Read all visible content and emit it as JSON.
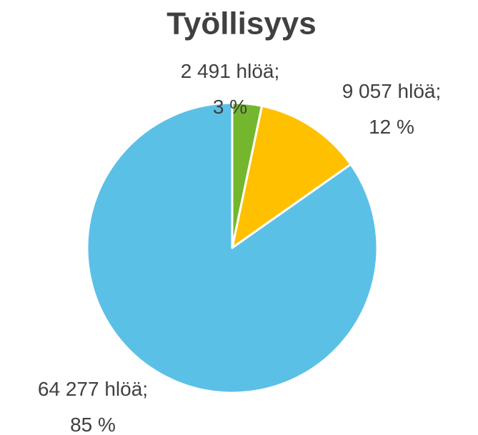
{
  "chart_data": {
    "type": "pie",
    "title": "Työllisyys",
    "values": [
      2491,
      9057,
      64277
    ],
    "value_labels": [
      "2 491 hlöä; 3 %",
      "9 057 hlöä; 12 %",
      "64 277 hlöä; 85 %"
    ],
    "colors": [
      "#74b72e",
      "#ffc000",
      "#5bc0e6"
    ]
  }
}
